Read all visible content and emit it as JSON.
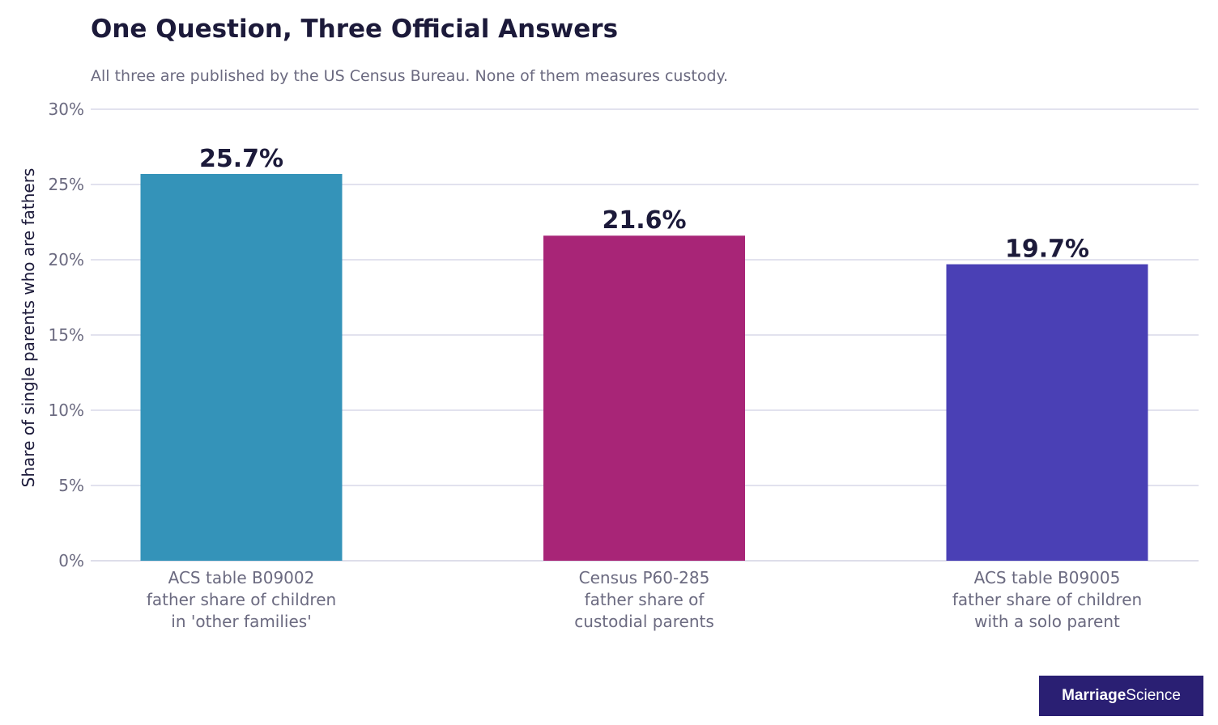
{
  "chart_data": {
    "type": "bar",
    "title": "One Question, Three Official Answers",
    "subtitle": "All three are published by the US Census Bureau. None of them measures custody.",
    "ylabel": "Share of single parents who are fathers",
    "xlabel": "",
    "ylim": [
      0,
      30
    ],
    "yticks": [
      0,
      5,
      10,
      15,
      20,
      25,
      30
    ],
    "ytick_labels": [
      "0%",
      "5%",
      "10%",
      "15%",
      "20%",
      "25%",
      "30%"
    ],
    "grid": true,
    "categories": [
      [
        "ACS table B09002",
        "father share of children",
        "in 'other families'"
      ],
      [
        "Census P60-285",
        "father share of",
        "custodial parents"
      ],
      [
        "ACS table B09005",
        "father share of children",
        "with a solo parent"
      ]
    ],
    "values": [
      25.7,
      21.6,
      19.7
    ],
    "value_labels": [
      "25.7%",
      "21.6%",
      "19.7%"
    ],
    "colors": [
      "#3493b9",
      "#a82577",
      "#4a40b5"
    ]
  },
  "branding": {
    "bold": "Marriage",
    "regular": "Science",
    "background": "#2a1f73"
  }
}
